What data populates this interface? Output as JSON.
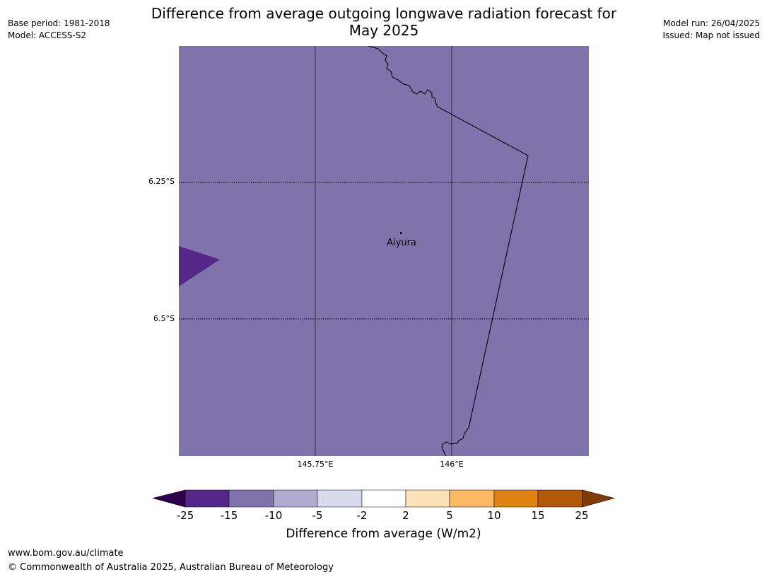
{
  "header": {
    "title_line1": "Difference from average outgoing longwave radiation forecast for",
    "title_line2": "May 2025",
    "base_period": "Base period: 1981-2018",
    "model": "Model: ACCESS-S2",
    "model_run": "Model run: 26/04/2025",
    "issued": "Issued: Map not issued"
  },
  "map": {
    "fill_color": "#8073ac",
    "patch_color": "#542788",
    "lat_labels": [
      "6.25°S",
      "6.5°S"
    ],
    "lon_labels": [
      "145.75°E",
      "146°E"
    ],
    "city": {
      "name": "Aiyura"
    }
  },
  "legend": {
    "title": "Difference from average (W/m2)",
    "ticks": [
      "-25",
      "-15",
      "-10",
      "-5",
      "-2",
      "2",
      "5",
      "10",
      "15",
      "25"
    ],
    "colors": [
      "#2d004b",
      "#542788",
      "#8073ac",
      "#b2abd2",
      "#d8daeb",
      "#ffffff",
      "#fee0b6",
      "#fdb863",
      "#e08214",
      "#b35806",
      "#7f3b08"
    ]
  },
  "footer": {
    "url": "www.bom.gov.au/climate",
    "copyright": "© Commonwealth of Australia 2025, Australian Bureau of Meteorology"
  }
}
